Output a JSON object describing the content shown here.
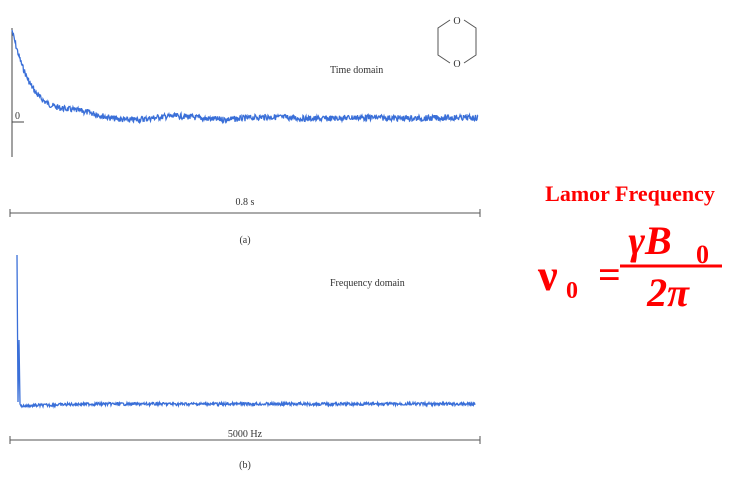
{
  "panel_a": {
    "label": "Time domain",
    "zero": "0",
    "scale": "0.8 s",
    "caption": "(a)"
  },
  "panel_b": {
    "label": "Frequency domain",
    "scale": "5000 Hz",
    "caption": "(b)"
  },
  "molecule": {
    "atoms": [
      "O",
      "O"
    ]
  },
  "formula": {
    "title": "Lamor Frequency",
    "lhs": "ν",
    "lhs_sub": "0",
    "equals": "=",
    "numerator": "γB",
    "numerator_sub": "0",
    "denominator": "2π"
  }
}
